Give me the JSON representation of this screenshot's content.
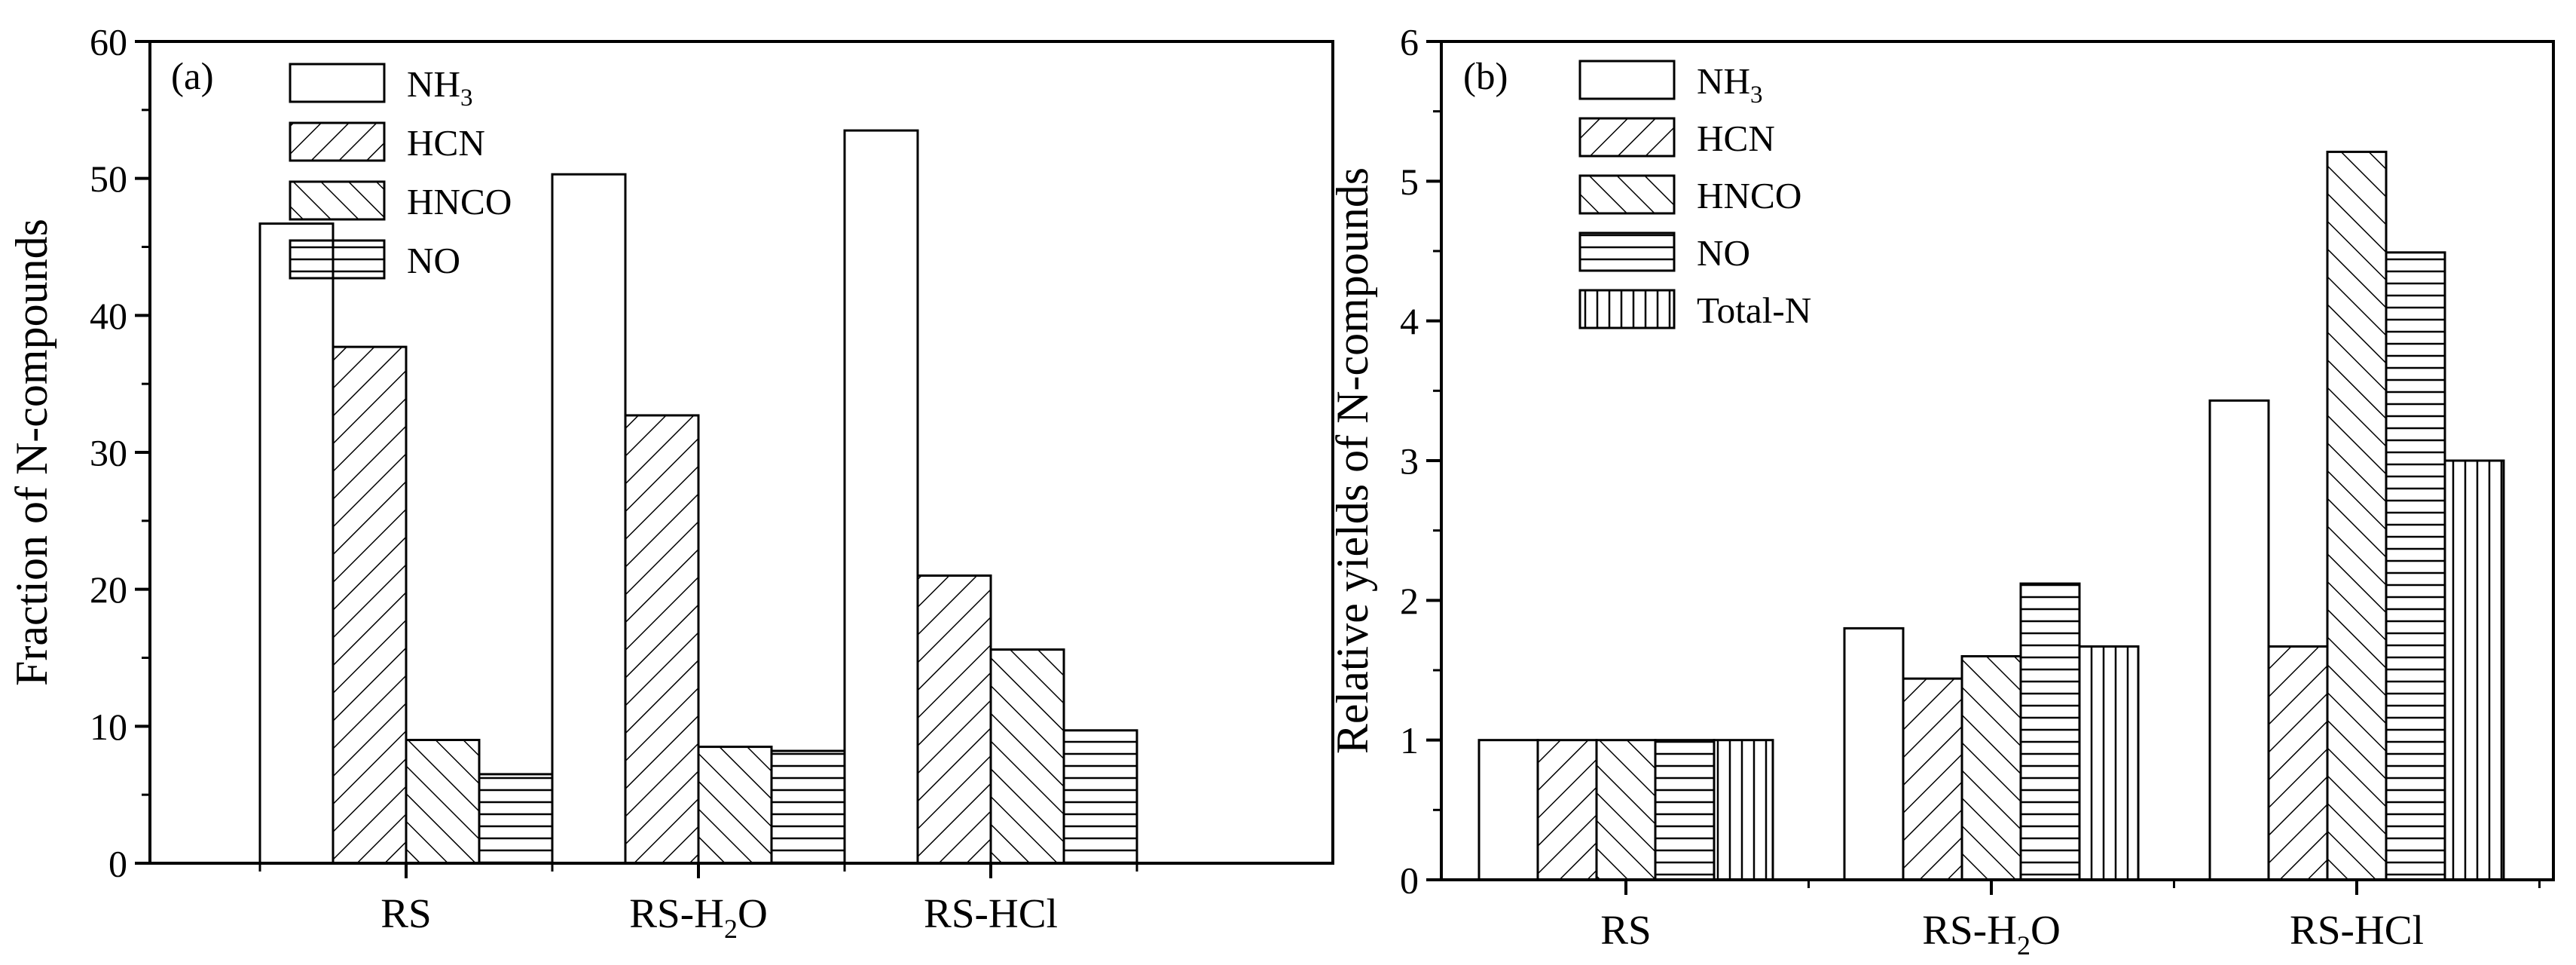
{
  "figure": {
    "background": "#ffffff",
    "stroke_color": "#000000",
    "bar_fill": "#ffffff"
  },
  "patterns": {
    "NH3": "none",
    "HCN": "diagonal-up",
    "HNCO": "diagonal-down",
    "NO": "horizontal",
    "Total-N": "vertical"
  },
  "chart_data": [
    {
      "type": "bar",
      "panel_label": "(a)",
      "title": "",
      "xlabel": "",
      "ylabel": "Fraction of N-compounds",
      "ylim": [
        0,
        60
      ],
      "yticks": [
        "0",
        "10",
        "20",
        "30",
        "40",
        "50",
        "60"
      ],
      "categories": [
        {
          "base": "RS",
          "sub": "",
          "tail": ""
        },
        {
          "base": "RS-H",
          "sub": "2",
          "tail": "O"
        },
        {
          "base": "RS-HCl",
          "sub": "",
          "tail": ""
        }
      ],
      "legend_position": "top-left",
      "series": [
        {
          "key": "NH3",
          "label_base": "NH",
          "label_sub": "3",
          "values": [
            46.7,
            50.3,
            53.5
          ]
        },
        {
          "key": "HCN",
          "label_base": "HCN",
          "label_sub": "",
          "values": [
            37.7,
            32.7,
            21.0
          ]
        },
        {
          "key": "HNCO",
          "label_base": "HNCO",
          "label_sub": "",
          "values": [
            9.0,
            8.5,
            15.6
          ]
        },
        {
          "key": "NO",
          "label_base": "NO",
          "label_sub": "",
          "values": [
            6.5,
            8.2,
            9.7
          ]
        }
      ]
    },
    {
      "type": "bar",
      "panel_label": "(b)",
      "title": "",
      "xlabel": "",
      "ylabel": "Relative yields of N-compounds",
      "ylim": [
        0,
        6
      ],
      "yticks": [
        "0",
        "1",
        "2",
        "3",
        "4",
        "5",
        "6"
      ],
      "categories": [
        {
          "base": "RS",
          "sub": "",
          "tail": ""
        },
        {
          "base": "RS-H",
          "sub": "2",
          "tail": "O"
        },
        {
          "base": "RS-HCl",
          "sub": "",
          "tail": ""
        }
      ],
      "legend_position": "top-left",
      "series": [
        {
          "key": "NH3",
          "label_base": "NH",
          "label_sub": "3",
          "values": [
            1.0,
            1.8,
            3.43
          ]
        },
        {
          "key": "HCN",
          "label_base": "HCN",
          "label_sub": "",
          "values": [
            1.0,
            1.44,
            1.67
          ]
        },
        {
          "key": "HNCO",
          "label_base": "HNCO",
          "label_sub": "",
          "values": [
            1.0,
            1.6,
            5.21
          ]
        },
        {
          "key": "NO",
          "label_base": "NO",
          "label_sub": "",
          "values": [
            1.0,
            2.12,
            4.49
          ]
        },
        {
          "key": "Total-N",
          "label_base": "Total-N",
          "label_sub": "",
          "values": [
            1.0,
            1.67,
            3.0
          ]
        }
      ]
    }
  ]
}
